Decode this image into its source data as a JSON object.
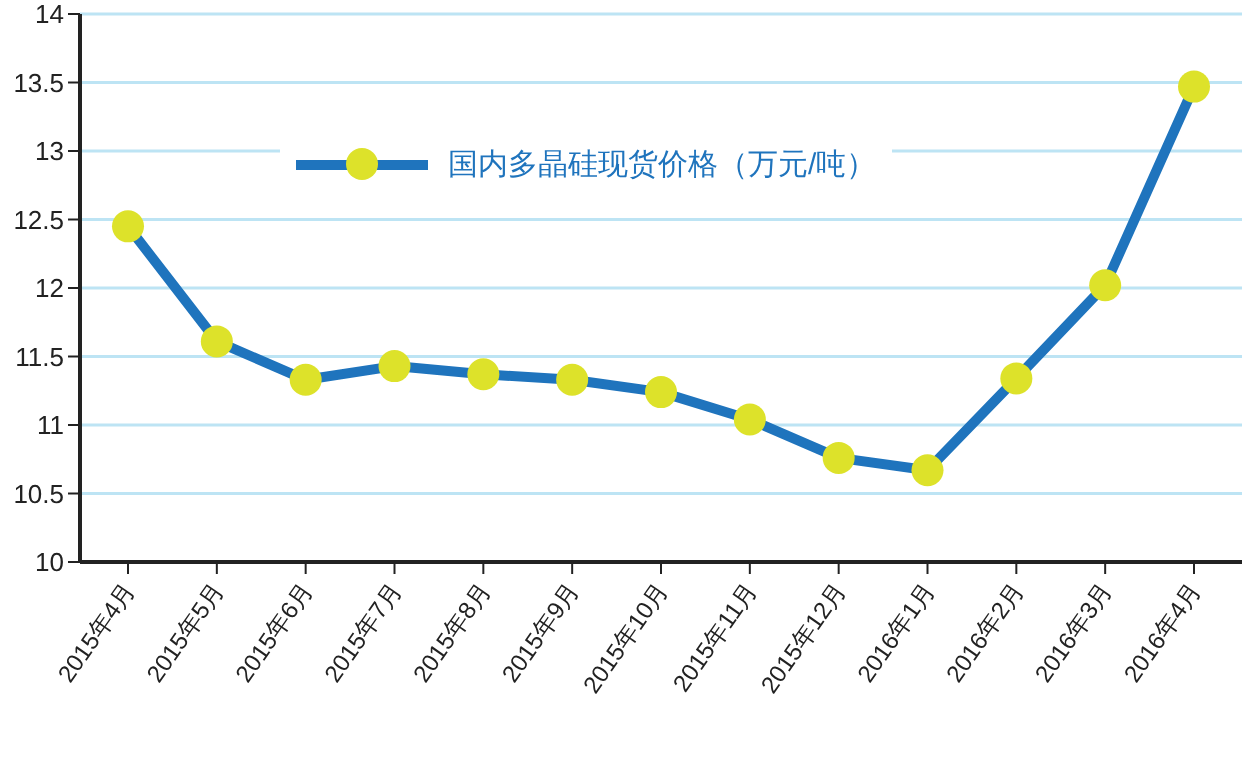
{
  "chart_data": {
    "type": "line",
    "categories": [
      "2015年4月",
      "2015年5月",
      "2015年6月",
      "2015年7月",
      "2015年8月",
      "2015年9月",
      "2015年10月",
      "2015年11月",
      "2015年12月",
      "2016年1月",
      "2016年2月",
      "2016年3月",
      "2016年4月"
    ],
    "series": [
      {
        "name": "国内多晶硅现货价格（万元/吨）",
        "color": "#1f74bd",
        "values": [
          12.45,
          11.61,
          11.33,
          11.43,
          11.37,
          11.33,
          11.24,
          11.04,
          10.76,
          10.67,
          11.34,
          12.02,
          13.47
        ]
      }
    ],
    "ylim": [
      10,
      14
    ],
    "yticks": [
      10,
      10.5,
      11,
      11.5,
      12,
      12.5,
      13,
      13.5,
      14
    ],
    "grid": "y",
    "legend": "top",
    "marker": "circle",
    "line_style": "solid"
  }
}
